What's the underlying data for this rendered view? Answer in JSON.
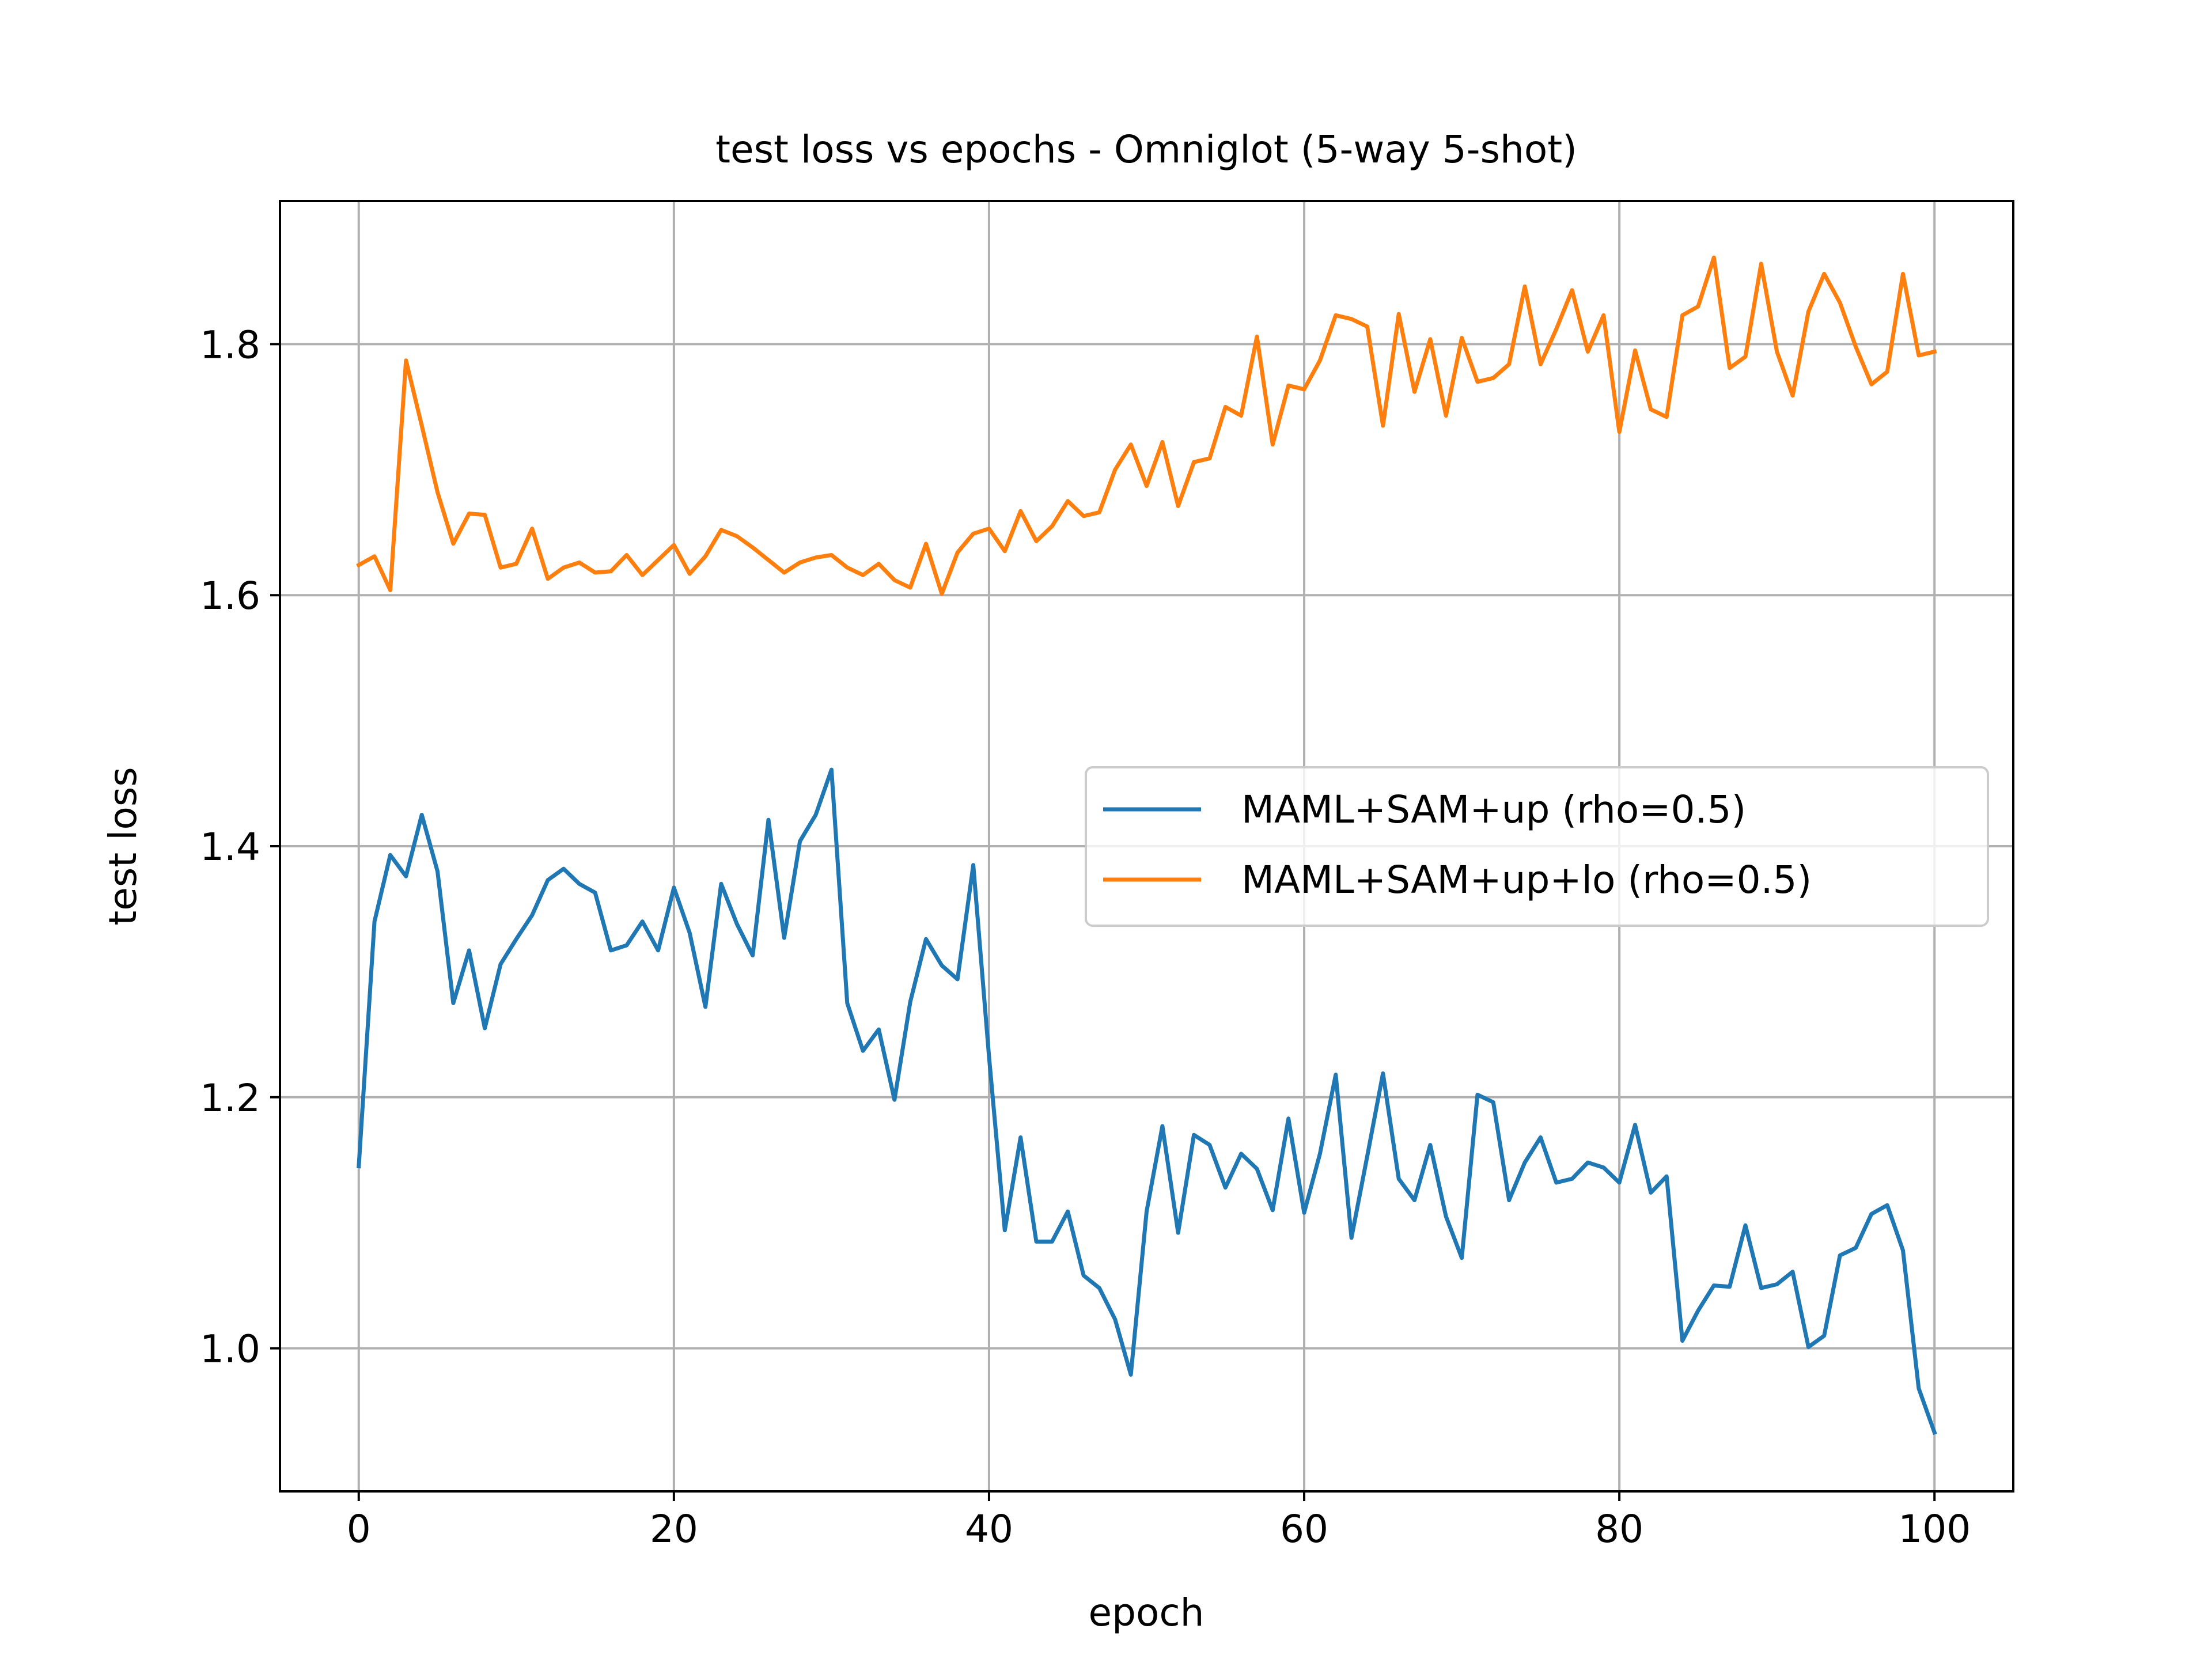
{
  "chart_data": {
    "type": "line",
    "title": "test loss vs epochs - Omniglot (5-way 5-shot)",
    "xlabel": "epoch",
    "ylabel": "test loss",
    "xlim": [
      -5,
      105
    ],
    "ylim": [
      0.886,
      1.914
    ],
    "xticks": [
      0,
      20,
      40,
      60,
      80,
      100
    ],
    "xtick_labels": [
      "0",
      "20",
      "40",
      "60",
      "80",
      "100"
    ],
    "yticks": [
      1.0,
      1.2,
      1.4,
      1.6,
      1.8
    ],
    "ytick_labels": [
      "1.0",
      "1.2",
      "1.4",
      "1.6",
      "1.8"
    ],
    "grid": true,
    "legend_position": "center-right",
    "x": [
      0,
      1,
      2,
      3,
      4,
      5,
      6,
      7,
      8,
      9,
      10,
      11,
      12,
      13,
      14,
      15,
      16,
      17,
      18,
      19,
      20,
      21,
      22,
      23,
      24,
      25,
      26,
      27,
      28,
      29,
      30,
      31,
      32,
      33,
      34,
      35,
      36,
      37,
      38,
      39,
      40,
      41,
      42,
      43,
      44,
      45,
      46,
      47,
      48,
      49,
      50,
      51,
      52,
      53,
      54,
      55,
      56,
      57,
      58,
      59,
      60,
      61,
      62,
      63,
      64,
      65,
      66,
      67,
      68,
      69,
      70,
      71,
      72,
      73,
      74,
      75,
      76,
      77,
      78,
      79,
      80,
      81,
      82,
      83,
      84,
      85,
      86,
      87,
      88,
      89,
      90,
      91,
      92,
      93,
      94,
      95,
      96,
      97,
      98,
      99,
      100
    ],
    "series": [
      {
        "name": "MAML+SAM+up (rho=0.5)",
        "color": "#1f77b4",
        "values": [
          1.145,
          1.34,
          1.393,
          1.376,
          1.425,
          1.38,
          1.275,
          1.317,
          1.255,
          1.306,
          1.326,
          1.345,
          1.373,
          1.382,
          1.37,
          1.363,
          1.317,
          1.321,
          1.34,
          1.317,
          1.367,
          1.331,
          1.272,
          1.37,
          1.338,
          1.313,
          1.421,
          1.327,
          1.404,
          1.425,
          1.461,
          1.275,
          1.237,
          1.254,
          1.198,
          1.276,
          1.326,
          1.305,
          1.294,
          1.385,
          1.232,
          1.094,
          1.168,
          1.085,
          1.085,
          1.109,
          1.058,
          1.048,
          1.023,
          0.979,
          1.109,
          1.177,
          1.092,
          1.17,
          1.162,
          1.128,
          1.155,
          1.143,
          1.11,
          1.183,
          1.108,
          1.155,
          1.218,
          1.088,
          1.153,
          1.219,
          1.135,
          1.118,
          1.162,
          1.105,
          1.072,
          1.202,
          1.196,
          1.118,
          1.148,
          1.168,
          1.132,
          1.135,
          1.148,
          1.144,
          1.132,
          1.178,
          1.124,
          1.137,
          1.006,
          1.03,
          1.05,
          1.049,
          1.098,
          1.048,
          1.051,
          1.061,
          1.001,
          1.01,
          1.074,
          1.08,
          1.107,
          1.114,
          1.078,
          0.968,
          0.933
        ]
      },
      {
        "name": "MAML+SAM+up+lo (rho=0.5)",
        "color": "#ff7f0e",
        "values": [
          1.624,
          1.631,
          1.604,
          1.787,
          1.735,
          1.682,
          1.641,
          1.665,
          1.664,
          1.622,
          1.625,
          1.653,
          1.613,
          1.622,
          1.626,
          1.618,
          1.619,
          1.632,
          1.616,
          1.628,
          1.64,
          1.617,
          1.631,
          1.652,
          1.647,
          1.638,
          1.628,
          1.618,
          1.626,
          1.63,
          1.632,
          1.622,
          1.616,
          1.625,
          1.612,
          1.606,
          1.641,
          1.601,
          1.634,
          1.649,
          1.653,
          1.635,
          1.667,
          1.643,
          1.655,
          1.675,
          1.663,
          1.666,
          1.7,
          1.72,
          1.687,
          1.722,
          1.671,
          1.706,
          1.709,
          1.75,
          1.743,
          1.806,
          1.72,
          1.767,
          1.764,
          1.787,
          1.823,
          1.82,
          1.814,
          1.735,
          1.824,
          1.762,
          1.804,
          1.743,
          1.805,
          1.77,
          1.773,
          1.784,
          1.846,
          1.784,
          1.812,
          1.843,
          1.794,
          1.823,
          1.73,
          1.795,
          1.748,
          1.742,
          1.823,
          1.83,
          1.869,
          1.781,
          1.79,
          1.864,
          1.794,
          1.759,
          1.826,
          1.856,
          1.833,
          1.798,
          1.768,
          1.778,
          1.856,
          1.791,
          1.794
        ]
      }
    ]
  }
}
